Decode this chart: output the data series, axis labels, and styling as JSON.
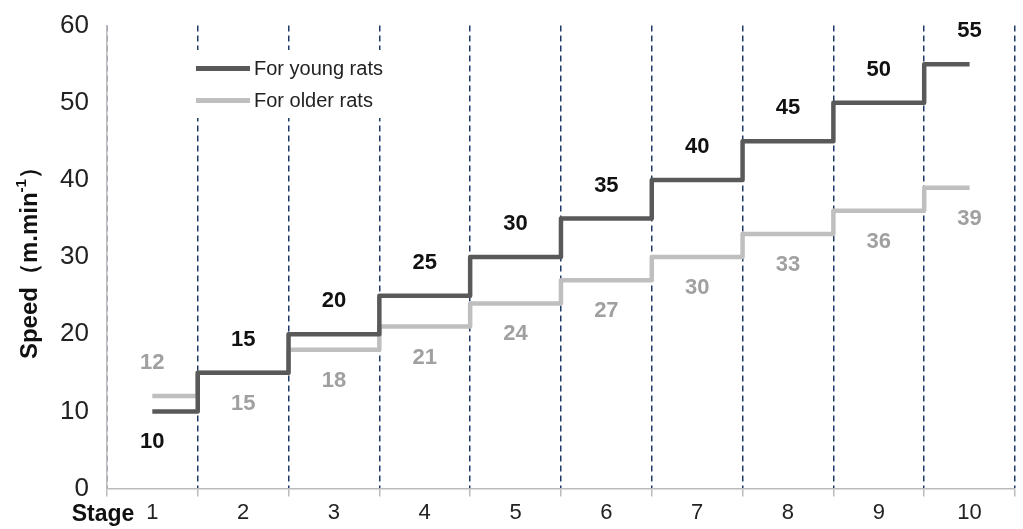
{
  "chart_data": {
    "type": "step",
    "xlabel": "Stage",
    "ylabel": "Speed（m.min$^{-1}$）",
    "categories": [
      "1",
      "2",
      "3",
      "4",
      "5",
      "6",
      "7",
      "8",
      "9",
      "10"
    ],
    "series": [
      {
        "name": "For young rats",
        "color": "#595959",
        "values": [
          10,
          15,
          20,
          25,
          30,
          35,
          40,
          45,
          50,
          55
        ]
      },
      {
        "name": "For older rats",
        "color": "#bfbfbf",
        "values": [
          12,
          15,
          18,
          21,
          24,
          27,
          30,
          33,
          36,
          39
        ]
      }
    ],
    "ylim": [
      0,
      60
    ],
    "yticks": [
      0,
      10,
      20,
      30,
      40,
      50,
      60
    ],
    "grid": "x",
    "line_style": "solid",
    "marker": "none",
    "legend": "top left",
    "data_labels": true
  }
}
